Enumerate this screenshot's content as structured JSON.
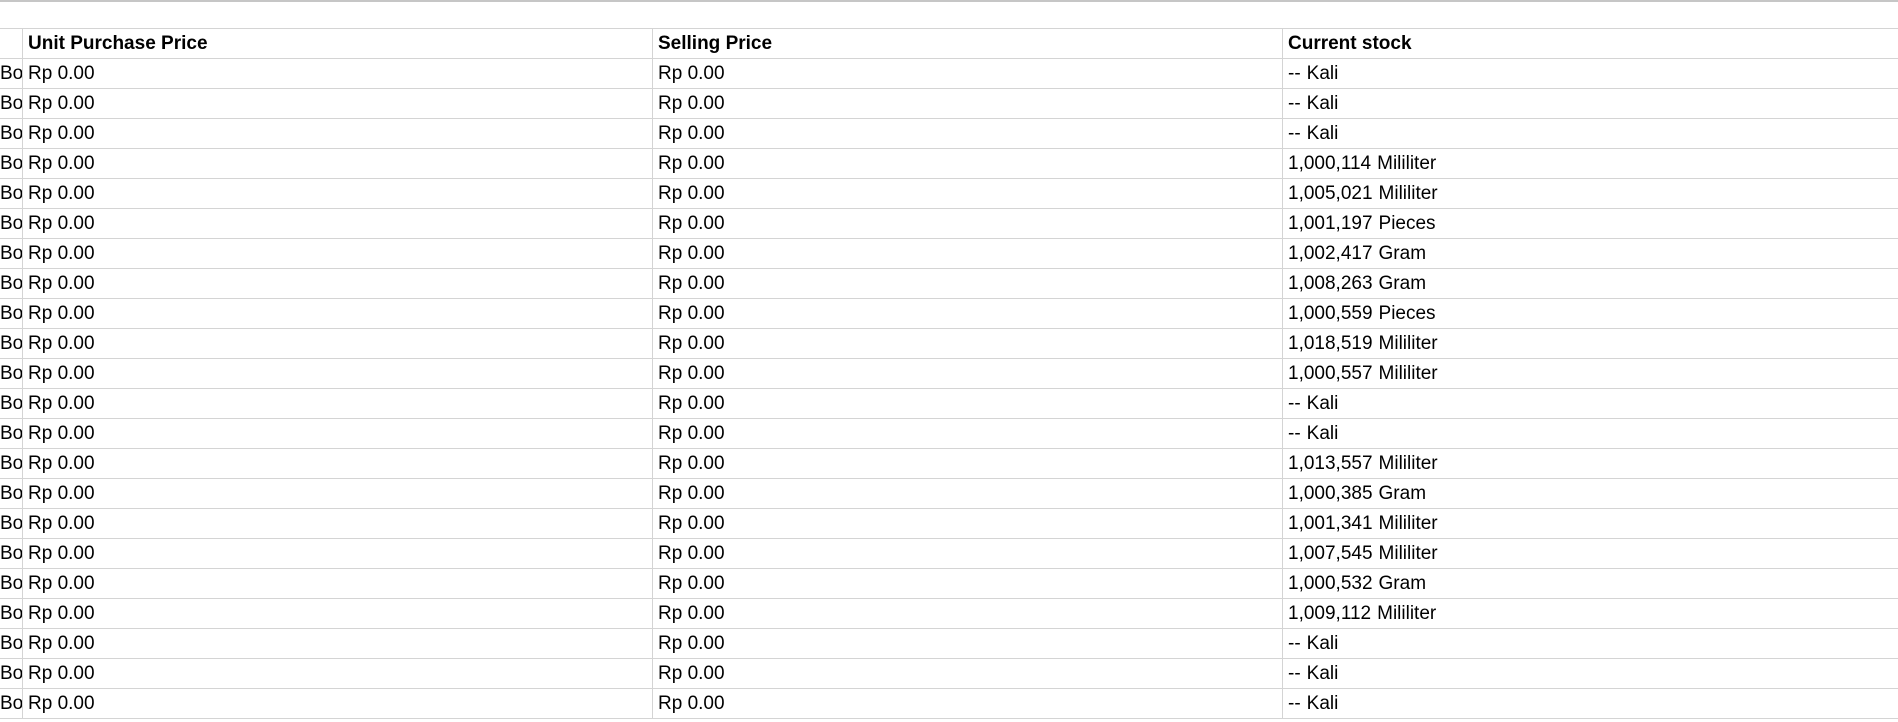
{
  "sheet": {
    "headers": [
      "",
      "Unit Purchase Price",
      "Selling Price",
      "Current stock"
    ],
    "rows": [
      {
        "a": "Bo",
        "purchase": "Rp 0.00",
        "selling": "Rp 0.00",
        "stock": "--",
        "unit": "Kali"
      },
      {
        "a": "Bo",
        "purchase": "Rp 0.00",
        "selling": "Rp 0.00",
        "stock": "--",
        "unit": "Kali"
      },
      {
        "a": "Bo",
        "purchase": "Rp 0.00",
        "selling": "Rp 0.00",
        "stock": "--",
        "unit": "Kali"
      },
      {
        "a": "Bo",
        "purchase": "Rp 0.00",
        "selling": "Rp 0.00",
        "stock": "1,000,114",
        "unit": "Mililiter"
      },
      {
        "a": "Bo",
        "purchase": "Rp 0.00",
        "selling": "Rp 0.00",
        "stock": "1,005,021",
        "unit": "Mililiter"
      },
      {
        "a": "Bo",
        "purchase": "Rp 0.00",
        "selling": "Rp 0.00",
        "stock": "1,001,197",
        "unit": "Pieces"
      },
      {
        "a": "Bo",
        "purchase": "Rp 0.00",
        "selling": "Rp 0.00",
        "stock": "1,002,417",
        "unit": "Gram"
      },
      {
        "a": "Bo",
        "purchase": "Rp 0.00",
        "selling": "Rp 0.00",
        "stock": "1,008,263",
        "unit": "Gram"
      },
      {
        "a": "Bo",
        "purchase": "Rp 0.00",
        "selling": "Rp 0.00",
        "stock": "1,000,559",
        "unit": "Pieces"
      },
      {
        "a": "Bo",
        "purchase": "Rp 0.00",
        "selling": "Rp 0.00",
        "stock": "1,018,519",
        "unit": "Mililiter"
      },
      {
        "a": "Bo",
        "purchase": "Rp 0.00",
        "selling": "Rp 0.00",
        "stock": "1,000,557",
        "unit": "Mililiter"
      },
      {
        "a": "Bo",
        "purchase": "Rp 0.00",
        "selling": "Rp 0.00",
        "stock": "--",
        "unit": "Kali"
      },
      {
        "a": "Bo",
        "purchase": "Rp 0.00",
        "selling": "Rp 0.00",
        "stock": "--",
        "unit": "Kali"
      },
      {
        "a": "Bo",
        "purchase": "Rp 0.00",
        "selling": "Rp 0.00",
        "stock": "1,013,557",
        "unit": "Mililiter"
      },
      {
        "a": "Bo",
        "purchase": "Rp 0.00",
        "selling": "Rp 0.00",
        "stock": "1,000,385",
        "unit": "Gram"
      },
      {
        "a": "Bo",
        "purchase": "Rp 0.00",
        "selling": "Rp 0.00",
        "stock": "1,001,341",
        "unit": "Mililiter"
      },
      {
        "a": "Bo",
        "purchase": "Rp 0.00",
        "selling": "Rp 0.00",
        "stock": "1,007,545",
        "unit": "Mililiter"
      },
      {
        "a": "Bo",
        "purchase": "Rp 0.00",
        "selling": "Rp 0.00",
        "stock": "1,000,532",
        "unit": "Gram"
      },
      {
        "a": "Bo",
        "purchase": "Rp 0.00",
        "selling": "Rp 0.00",
        "stock": "1,009,112",
        "unit": "Mililiter"
      },
      {
        "a": "Bo",
        "purchase": "Rp 0.00",
        "selling": "Rp 0.00",
        "stock": "--",
        "unit": "Kali"
      },
      {
        "a": "Bo",
        "purchase": "Rp 0.00",
        "selling": "Rp 0.00",
        "stock": "--",
        "unit": "Kali"
      },
      {
        "a": "Bo",
        "purchase": "Rp 0.00",
        "selling": "Rp 0.00",
        "stock": "--",
        "unit": "Kali"
      }
    ]
  }
}
